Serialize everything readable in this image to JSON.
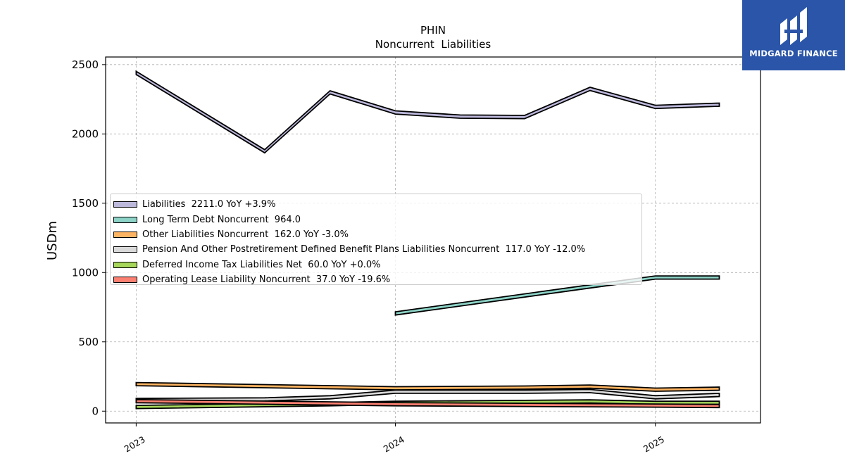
{
  "logo": {
    "name": "MIDGARD FINANCE"
  },
  "chart_data": {
    "type": "area",
    "title": "PHIN",
    "subtitle": "Noncurrent  Liabilities",
    "ylabel": "USDm",
    "xlabel": "",
    "ylim": [
      -85,
      2555
    ],
    "xlim": [
      "2022-11-19",
      "2025-05-29"
    ],
    "y_ticks": [
      0,
      500,
      1000,
      1500,
      2000,
      2500
    ],
    "x_ticks": [
      {
        "date": "2023-01-01",
        "label": "2023"
      },
      {
        "date": "2024-01-01",
        "label": "2024"
      },
      {
        "date": "2025-01-01",
        "label": "2025"
      }
    ],
    "grid": true,
    "legend_position": "center-left",
    "series": [
      {
        "name": "Liabilities  2211.0 YoY +3.9%",
        "color": "#bcb8db",
        "x": [
          "2023-01-01",
          "2023-07-01",
          "2023-10-01",
          "2024-01-01",
          "2024-04-01",
          "2024-07-01",
          "2024-10-01",
          "2025-01-01",
          "2025-04-01"
        ],
        "values": [
          2440,
          1875,
          2300,
          2155,
          2125,
          2122,
          2325,
          2195,
          2211
        ]
      },
      {
        "name": "Long Term Debt Noncurrent  964.0",
        "color": "#8dd3c7",
        "x": [
          "2024-01-01",
          "2024-10-01",
          "2025-01-01",
          "2025-04-01"
        ],
        "values": [
          705,
          900,
          964,
          964
        ]
      },
      {
        "name": "Other Liabilities Noncurrent  162.0 YoY -3.0%",
        "color": "#fdb462",
        "x": [
          "2023-01-01",
          "2024-01-01",
          "2024-07-01",
          "2024-10-01",
          "2025-01-01",
          "2025-04-01"
        ],
        "values": [
          195,
          165,
          170,
          177,
          155,
          162
        ]
      },
      {
        "name": "Pension And Other Postretirement Defined Benefit Plans Liabilities Noncurrent  117.0 YoY -12.0%",
        "color": "#d9d9d9",
        "x": [
          "2023-01-01",
          "2023-07-01",
          "2023-10-01",
          "2024-01-01",
          "2024-07-01",
          "2024-10-01",
          "2025-01-01",
          "2025-04-01"
        ],
        "values": [
          80,
          85,
          100,
          140,
          140,
          145,
          100,
          117
        ]
      },
      {
        "name": "Deferred Income Tax Liabilities Net  60.0 YoY +0.0%",
        "color": "#a6d75b",
        "x": [
          "2023-01-01",
          "2023-10-01",
          "2024-01-01",
          "2024-10-01",
          "2025-01-01",
          "2025-04-01"
        ],
        "values": [
          30,
          50,
          60,
          70,
          60,
          60
        ]
      },
      {
        "name": "Operating Lease Liability Noncurrent  37.0 YoY -19.6%",
        "color": "#fb8072",
        "x": [
          "2023-01-01",
          "2024-01-01",
          "2025-01-01",
          "2025-04-01"
        ],
        "values": [
          72,
          50,
          40,
          37
        ]
      }
    ]
  }
}
